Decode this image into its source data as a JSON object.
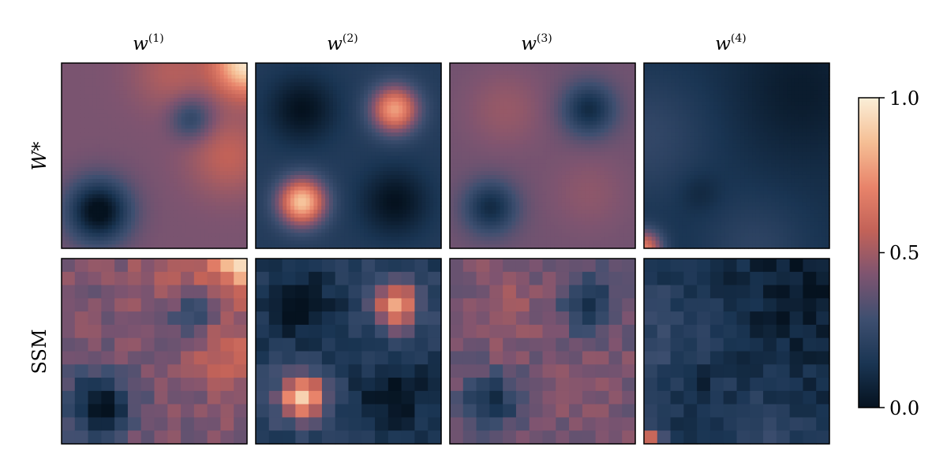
{
  "chart_data": {
    "type": "heatmap",
    "columns": [
      {
        "var": "w",
        "sup": "(1)"
      },
      {
        "var": "w",
        "sup": "(2)"
      },
      {
        "var": "w",
        "sup": "(3)"
      },
      {
        "var": "w",
        "sup": "(4)"
      }
    ],
    "rows": [
      {
        "label": "W*",
        "kind": "smooth"
      },
      {
        "label": "SSM",
        "kind": "pixelated"
      }
    ],
    "colorbar": {
      "range": [
        0.0,
        1.0
      ],
      "ticks": [
        0.0,
        0.5,
        1.0
      ],
      "tick_labels": [
        "0.0",
        "0.5",
        "1.0"
      ],
      "colormap_stops": [
        "#05121f",
        "#1a3553",
        "#3e4f70",
        "#7e5470",
        "#c26258",
        "#e8836a",
        "#f5bf95",
        "#fbefd8"
      ]
    },
    "panels": {
      "w1": {
        "base": 0.42,
        "bumps": [
          {
            "cx": 0.2,
            "cy": 0.2,
            "a": -0.45,
            "s": 0.12
          },
          {
            "cx": 0.7,
            "cy": 0.7,
            "a": -0.22,
            "s": 0.08
          },
          {
            "cx": 0.9,
            "cy": 0.5,
            "a": 0.15,
            "s": 0.15
          },
          {
            "cx": 1.0,
            "cy": 1.0,
            "a": 0.55,
            "s": 0.12
          },
          {
            "cx": 0.6,
            "cy": 0.95,
            "a": 0.12,
            "s": 0.15
          }
        ]
      },
      "w2": {
        "base": 0.18,
        "bumps": [
          {
            "cx": 0.25,
            "cy": 0.75,
            "a": -0.18,
            "s": 0.13
          },
          {
            "cx": 0.75,
            "cy": 0.25,
            "a": -0.18,
            "s": 0.13
          },
          {
            "cx": 0.75,
            "cy": 0.75,
            "a": 0.6,
            "s": 0.09
          },
          {
            "cx": 0.25,
            "cy": 0.25,
            "a": 0.7,
            "s": 0.09
          }
        ]
      },
      "w3": {
        "base": 0.4,
        "bumps": [
          {
            "cx": 0.22,
            "cy": 0.22,
            "a": -0.3,
            "s": 0.1
          },
          {
            "cx": 0.75,
            "cy": 0.75,
            "a": -0.3,
            "s": 0.1
          },
          {
            "cx": 0.3,
            "cy": 0.75,
            "a": 0.08,
            "s": 0.15
          },
          {
            "cx": 0.75,
            "cy": 0.3,
            "a": 0.06,
            "s": 0.15
          }
        ]
      },
      "w4": {
        "base": 0.12,
        "bumps": [
          {
            "cx": 0.0,
            "cy": 0.0,
            "a": 0.55,
            "s": 0.07
          },
          {
            "cx": 0.3,
            "cy": 0.3,
            "a": -0.06,
            "s": 0.08
          },
          {
            "cx": 0.0,
            "cy": 0.6,
            "a": 0.12,
            "s": 0.25
          },
          {
            "cx": 0.6,
            "cy": 0.0,
            "a": 0.1,
            "s": 0.2
          },
          {
            "cx": 0.85,
            "cy": 0.85,
            "a": -0.08,
            "s": 0.25
          }
        ]
      }
    },
    "ssm_grid": 14
  }
}
